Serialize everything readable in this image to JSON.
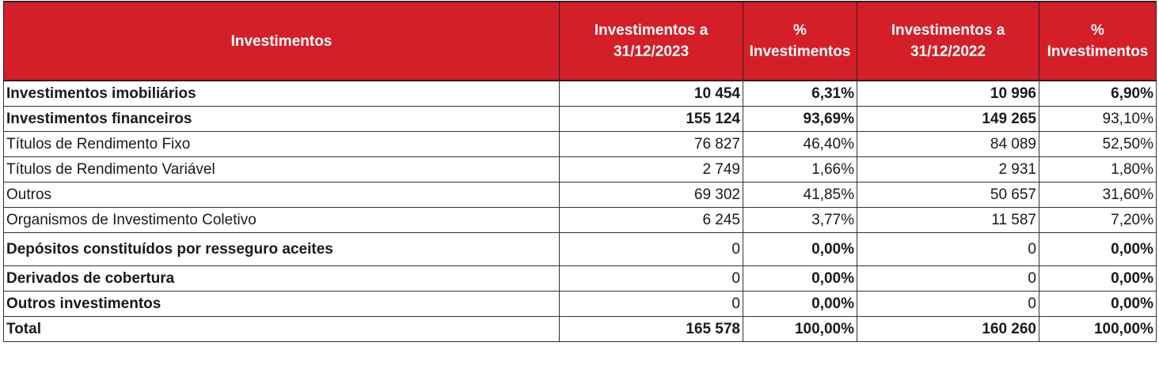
{
  "header": {
    "col0": "Investimentos",
    "col1_l1": "Investimentos a",
    "col1_l2": "31/12/2023",
    "col2_l1": "%",
    "col2_l2": "Investimentos",
    "col3_l1": "Investimentos a",
    "col3_l2": "31/12/2022",
    "col4_l1": "%",
    "col4_l2": "Investimentos"
  },
  "rows": [
    {
      "label": "Investimentos imobiliários",
      "v2023": "10 454",
      "p2023": "6,31%",
      "v2022": "10 996",
      "p2022": "6,90%"
    },
    {
      "label": "Investimentos financeiros",
      "v2023": "155 124",
      "p2023": "93,69%",
      "v2022": "149 265",
      "p2022": "93,10%"
    },
    {
      "label": "Títulos de Rendimento Fixo",
      "v2023": "76 827",
      "p2023": "46,40%",
      "v2022": "84 089",
      "p2022": "52,50%"
    },
    {
      "label": "Títulos de Rendimento Variável",
      "v2023": "2 749",
      "p2023": "1,66%",
      "v2022": "2 931",
      "p2022": "1,80%"
    },
    {
      "label": "Outros",
      "v2023": "69 302",
      "p2023": "41,85%",
      "v2022": "50 657",
      "p2022": "31,60%"
    },
    {
      "label": "Organismos de Investimento Coletivo",
      "v2023": "6 245",
      "p2023": "3,77%",
      "v2022": "11 587",
      "p2022": "7,20%"
    },
    {
      "label": "Depósitos constituídos por resseguro aceites",
      "v2023": "0",
      "p2023": "0,00%",
      "v2022": "0",
      "p2022": "0,00%"
    },
    {
      "label": "Derivados de cobertura",
      "v2023": "0",
      "p2023": "0,00%",
      "v2022": "0",
      "p2022": "0,00%"
    },
    {
      "label": "Outros investimentos",
      "v2023": "0",
      "p2023": "0,00%",
      "v2022": "0",
      "p2022": "0,00%"
    },
    {
      "label": "Total",
      "v2023": "165 578",
      "p2023": "100,00%",
      "v2022": "160 260",
      "p2022": "100,00%"
    }
  ]
}
